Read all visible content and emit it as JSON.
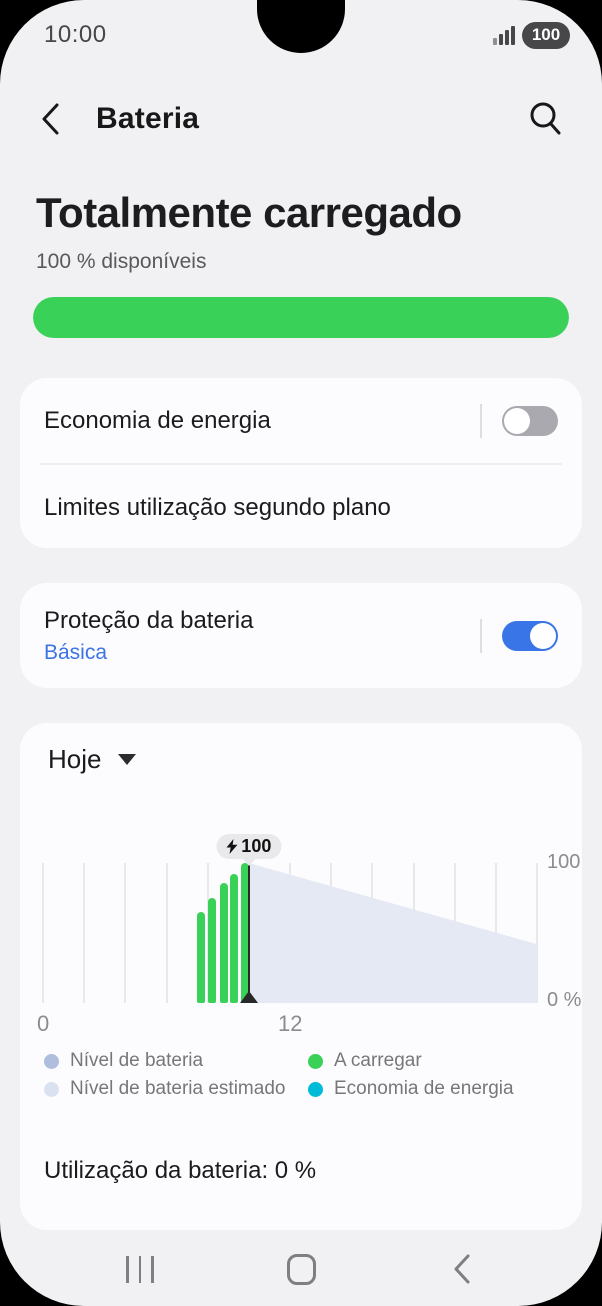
{
  "colors": {
    "green": "#3ad158",
    "toggle_on_blue": "#3a75e8",
    "link_blue": "#3c73e6",
    "estimated_area": "#e4e9f4"
  },
  "status_bar": {
    "time": "10:00",
    "battery_percent": "100"
  },
  "header": {
    "title": "Bateria"
  },
  "summary": {
    "title": "Totalmente carregado",
    "subtitle": "100 % disponíveis",
    "battery_level_percent": 100
  },
  "cards": {
    "power": {
      "row_saver": {
        "label": "Economia de energia",
        "toggle": "off"
      },
      "row_limits": {
        "label": "Limites utilização segundo plano"
      }
    },
    "protection": {
      "label": "Proteção da bateria",
      "value": "Básica",
      "toggle": "on"
    },
    "chart_card": {
      "period_selector": "Hoje",
      "usage_summary": "Utilização da bateria: 0 %"
    }
  },
  "chart_data": {
    "type": "bar+area",
    "title": "Hoje",
    "x_axis": {
      "tick_labels": [
        "0",
        "12"
      ],
      "range_hours": [
        0,
        24
      ],
      "gridline_every_hours": 2,
      "grid": true
    },
    "y_axis": {
      "tick_labels": [
        "100",
        "0 %"
      ],
      "range": [
        0,
        100
      ]
    },
    "current_time_hour": 10,
    "badge": {
      "icon": "lightning-bolt-icon",
      "text": "100"
    },
    "series": [
      {
        "name": "A carregar",
        "type": "bar",
        "color": "#3ad158",
        "points": [
          {
            "hour": 7.7,
            "level": 65
          },
          {
            "hour": 8.2,
            "level": 75
          },
          {
            "hour": 8.8,
            "level": 86
          },
          {
            "hour": 9.3,
            "level": 92
          },
          {
            "hour": 9.8,
            "level": 100
          }
        ]
      },
      {
        "name": "Nível de bateria estimado",
        "type": "area",
        "color": "#e4e9f4",
        "points": [
          {
            "hour": 10,
            "level": 100
          },
          {
            "hour": 24,
            "level": 42
          }
        ]
      }
    ],
    "legend": [
      {
        "label": "Nível de bateria",
        "color": "#b0bedd"
      },
      {
        "label": "Nível de bateria estimado",
        "color": "#dae2f2"
      },
      {
        "label": "A carregar",
        "color": "#3ad158"
      },
      {
        "label": "Economia de energia",
        "color": "#00bcd8"
      }
    ],
    "legend_position": "bottom"
  },
  "nav_bar": {
    "recents": "recents",
    "home": "home",
    "back": "back"
  }
}
